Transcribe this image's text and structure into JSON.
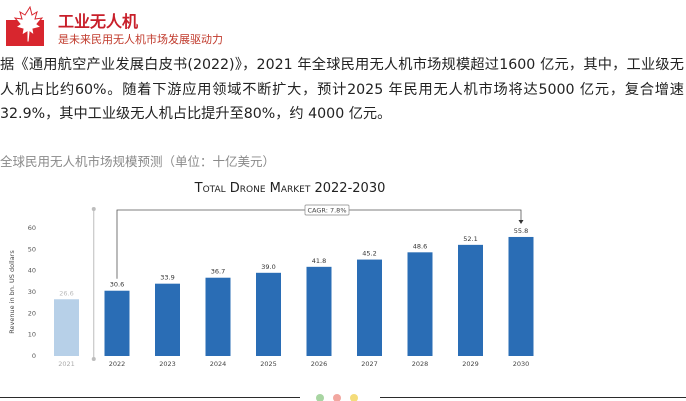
{
  "header": {
    "title": "工业无人机",
    "subtitle": "是未来民用无人机市场发展驱动力"
  },
  "article": {
    "paragraph": "据《通用航空产业发展白皮书(2022)》，2021 年全球民用无人机市场规模超过1600 亿元，其中，工业级无人机占比约60%。随着下游应用领域不断扩大，预计2025 年民用无人机市场将达5000 亿元，复合增速32.9%，其中工业级无人机占比提升至80%，约 4000 亿元。",
    "chart_caption": "全球民用无人机市场规模预测（单位：十亿美元）"
  },
  "colors": {
    "brand_red": "#c81f2a",
    "bar_primary": "#2a6db5",
    "bar_faded": "#b7d0e8",
    "dots": [
      "#a8d5a2",
      "#f2a7a0",
      "#f4dc7a"
    ]
  },
  "chart_data": {
    "type": "bar",
    "title": "Total Drone Market 2022-2030",
    "xlabel": "",
    "ylabel": "Revenue in bn. US dollars",
    "ylim": [
      0,
      60
    ],
    "yticks": [
      0,
      10,
      20,
      30,
      40,
      50,
      60
    ],
    "grid": false,
    "categories": [
      "2021",
      "2022",
      "2023",
      "2024",
      "2025",
      "2026",
      "2027",
      "2028",
      "2029",
      "2030"
    ],
    "values": [
      26.6,
      30.6,
      33.9,
      36.7,
      39.0,
      41.8,
      45.2,
      48.6,
      52.1,
      55.8
    ],
    "highlight": [
      false,
      true,
      true,
      true,
      true,
      true,
      true,
      true,
      true,
      true
    ],
    "annotation": "CAGR: 7.8%"
  }
}
